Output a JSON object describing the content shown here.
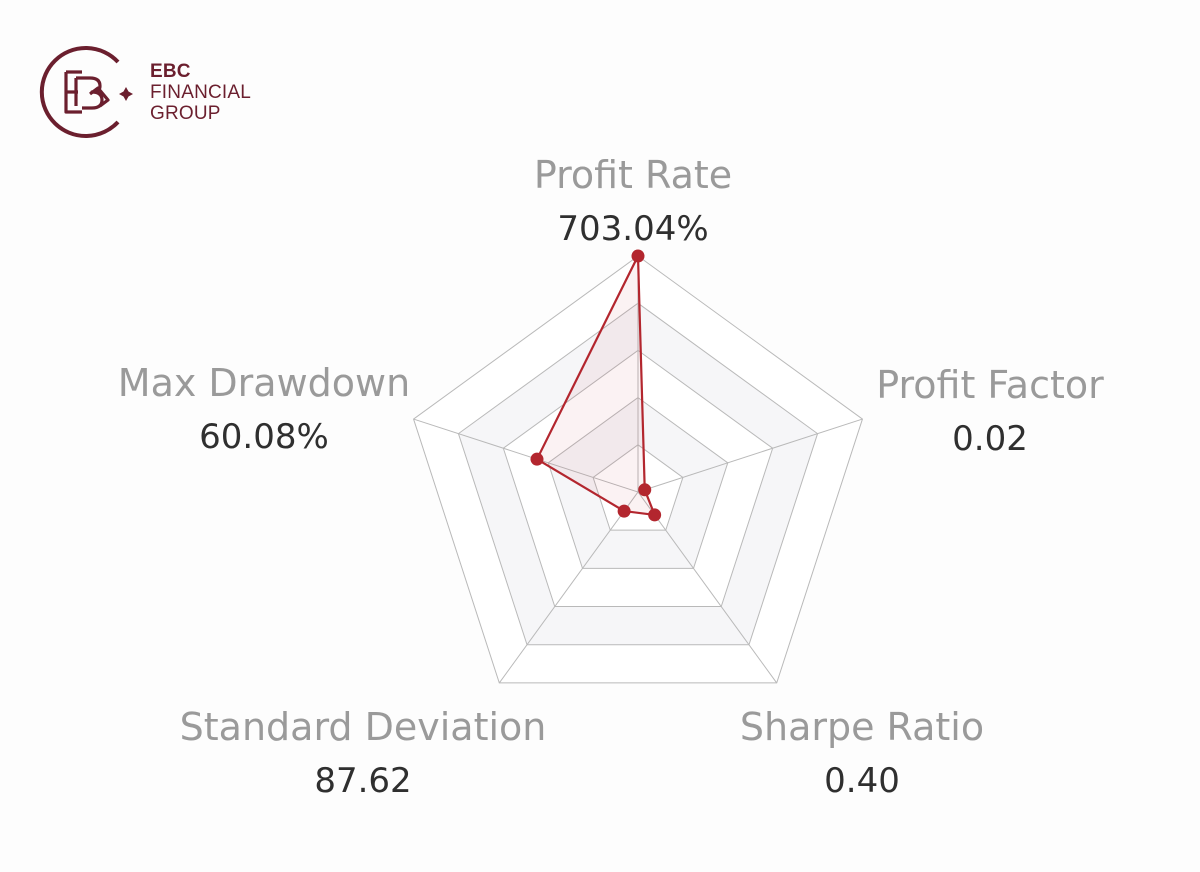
{
  "brand": {
    "line1": "EBC",
    "line2": "FINANCIAL",
    "line3": "GROUP",
    "monogram": "EBC",
    "color": "#6b1f2e"
  },
  "chart_data": {
    "type": "radar",
    "indicators": [
      {
        "name": "Profit Rate",
        "value_label": "703.04%"
      },
      {
        "name": "Profit Factor",
        "value_label": "0.02"
      },
      {
        "name": "Sharpe Ratio",
        "value_label": "0.40"
      },
      {
        "name": "Standard Deviation",
        "value_label": "87.62"
      },
      {
        "name": "Max Drawdown",
        "value_label": "60.08%"
      }
    ],
    "values_normalized": [
      1.0,
      0.03,
      0.12,
      0.1,
      0.45
    ],
    "rings": 5,
    "series_color": "#b3262e",
    "grid_color": "#b9b9b9"
  }
}
